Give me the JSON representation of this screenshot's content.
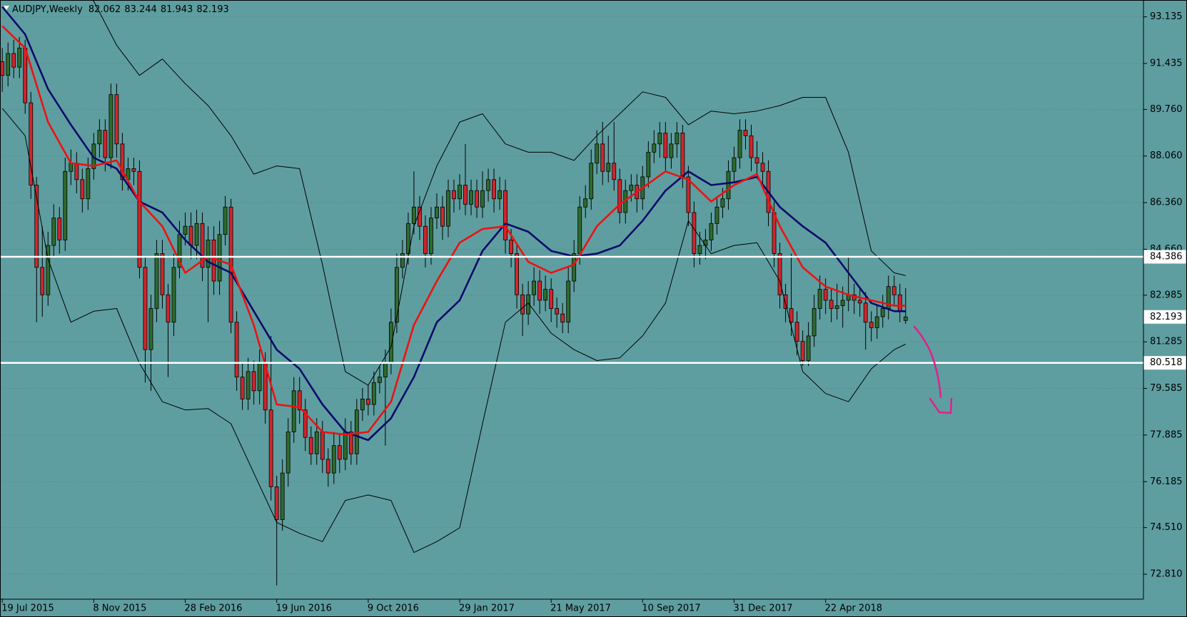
{
  "chart_data": {
    "type": "candlestick",
    "title": "AUDJPY,Weekly",
    "background": "#5f9ea0",
    "up_color": "#2e6b2e",
    "down_color": "#d0262b",
    "wick_color": "#000000",
    "hline_color": "#ffffff",
    "ylim": [
      71.9,
      93.75
    ],
    "yticks": [
      93.135,
      91.435,
      {
        "value": 89.76,
        "label": "89.760"
      },
      {
        "value": 88.06,
        "label": "88.060"
      },
      {
        "value": 86.36,
        "label": "86.360"
      },
      {
        "value": 84.66,
        "label": "84.660"
      },
      82.985,
      81.285,
      79.585,
      77.885,
      76.185,
      {
        "value": 74.51,
        "label": "74.510"
      },
      {
        "value": 72.81,
        "label": "72.810"
      }
    ],
    "grid": true,
    "hlines": [
      84.386,
      80.518
    ],
    "categories": [
      "19 Jul 2015",
      null,
      null,
      null,
      null,
      null,
      null,
      null,
      null,
      null,
      null,
      null,
      null,
      null,
      null,
      null,
      "8 Nov 2015",
      null,
      null,
      null,
      null,
      null,
      null,
      null,
      null,
      null,
      null,
      null,
      null,
      null,
      null,
      null,
      "28 Feb 2016",
      null,
      null,
      null,
      null,
      null,
      null,
      null,
      null,
      null,
      null,
      null,
      null,
      null,
      null,
      null,
      "19 Jun 2016",
      null,
      null,
      null,
      null,
      null,
      null,
      null,
      null,
      null,
      null,
      null,
      null,
      null,
      null,
      null,
      "9 Oct 2016",
      null,
      null,
      null,
      null,
      null,
      null,
      null,
      null,
      null,
      null,
      null,
      null,
      null,
      null,
      null,
      "29 Jan 2017",
      null,
      null,
      null,
      null,
      null,
      null,
      null,
      null,
      null,
      null,
      null,
      null,
      null,
      null,
      null,
      "21 May 2017",
      null,
      null,
      null,
      null,
      null,
      null,
      null,
      null,
      null,
      null,
      null,
      null,
      null,
      null,
      null,
      "10 Sep 2017",
      null,
      null,
      null,
      null,
      null,
      null,
      null,
      null,
      null,
      null,
      null,
      null,
      null,
      null,
      null,
      "31 Dec 2017",
      null,
      null,
      null,
      null,
      null,
      null,
      null,
      null,
      null,
      null,
      null,
      null,
      null,
      null,
      null,
      "22 Apr 2018",
      null,
      null,
      null,
      null,
      null,
      null,
      null,
      null,
      null,
      null,
      null,
      null,
      null,
      null
    ],
    "ohlc": [
      [
        91.5,
        92.0,
        90.4,
        91.0
      ],
      [
        91.0,
        92.2,
        90.6,
        91.8
      ],
      [
        91.8,
        92.3,
        90.9,
        91.3
      ],
      [
        91.3,
        92.4,
        90.9,
        92.0
      ],
      [
        92.0,
        92.3,
        89.6,
        90.0
      ],
      [
        90.0,
        90.4,
        86.5,
        87.0
      ],
      [
        87.0,
        87.3,
        82.0,
        84.0
      ],
      [
        84.0,
        85.5,
        82.2,
        83.0
      ],
      [
        83.0,
        85.3,
        82.6,
        84.8
      ],
      [
        84.8,
        86.3,
        84.4,
        85.8
      ],
      [
        85.8,
        86.2,
        84.5,
        85.0
      ],
      [
        85.0,
        88.0,
        84.6,
        87.5
      ],
      [
        87.5,
        88.3,
        87.0,
        87.8
      ],
      [
        87.8,
        88.2,
        86.7,
        87.2
      ],
      [
        87.2,
        87.6,
        86.0,
        86.5
      ],
      [
        86.5,
        88.0,
        86.1,
        87.6
      ],
      [
        87.6,
        88.9,
        87.2,
        88.5
      ],
      [
        88.5,
        89.4,
        88.0,
        89.0
      ],
      [
        89.0,
        89.4,
        87.5,
        88.0
      ],
      [
        88.0,
        90.7,
        87.6,
        90.3
      ],
      [
        90.3,
        90.7,
        88.0,
        88.5
      ],
      [
        88.5,
        88.9,
        86.8,
        87.2
      ],
      [
        87.2,
        88.0,
        86.8,
        87.6
      ],
      [
        87.6,
        88.0,
        87.0,
        87.5
      ],
      [
        87.5,
        87.9,
        83.6,
        84.0
      ],
      [
        84.0,
        84.4,
        79.8,
        81.0
      ],
      [
        81.0,
        83.0,
        79.5,
        82.5
      ],
      [
        82.5,
        85.0,
        82.0,
        84.5
      ],
      [
        84.5,
        85.0,
        82.5,
        83.0
      ],
      [
        83.0,
        83.4,
        80.0,
        82.0
      ],
      [
        82.0,
        84.5,
        81.5,
        84.0
      ],
      [
        84.0,
        85.7,
        83.6,
        85.2
      ],
      [
        85.2,
        86.0,
        84.8,
        85.5
      ],
      [
        85.5,
        86.0,
        84.3,
        84.8
      ],
      [
        84.8,
        86.1,
        84.3,
        85.6
      ],
      [
        85.6,
        86.0,
        83.5,
        84.0
      ],
      [
        84.0,
        85.5,
        82.0,
        85.0
      ],
      [
        85.0,
        85.5,
        83.0,
        83.5
      ],
      [
        83.5,
        85.7,
        83.0,
        85.2
      ],
      [
        85.2,
        86.6,
        84.8,
        86.2
      ],
      [
        86.2,
        86.5,
        81.6,
        82.0
      ],
      [
        82.0,
        82.4,
        79.5,
        80.0
      ],
      [
        80.0,
        80.5,
        78.8,
        79.2
      ],
      [
        79.2,
        80.7,
        78.8,
        80.2
      ],
      [
        80.2,
        80.6,
        79.0,
        79.5
      ],
      [
        79.5,
        81.0,
        79.0,
        80.5
      ],
      [
        80.5,
        80.9,
        78.3,
        78.8
      ],
      [
        78.8,
        81.5,
        75.5,
        76.0
      ],
      [
        76.0,
        76.4,
        72.4,
        74.8
      ],
      [
        74.8,
        77.0,
        74.4,
        76.5
      ],
      [
        76.5,
        78.5,
        76.0,
        78.0
      ],
      [
        78.0,
        80.0,
        77.6,
        79.5
      ],
      [
        79.5,
        80.0,
        78.3,
        78.8
      ],
      [
        78.8,
        79.2,
        77.3,
        77.8
      ],
      [
        77.8,
        78.2,
        76.8,
        77.2
      ],
      [
        77.2,
        78.5,
        76.8,
        78.0
      ],
      [
        78.0,
        78.4,
        76.5,
        77.0
      ],
      [
        77.0,
        77.4,
        76.0,
        76.5
      ],
      [
        76.5,
        78.0,
        76.1,
        77.5
      ],
      [
        77.5,
        77.9,
        76.5,
        77.0
      ],
      [
        77.0,
        78.5,
        76.6,
        78.0
      ],
      [
        78.0,
        78.4,
        76.8,
        77.2
      ],
      [
        77.2,
        79.2,
        76.8,
        78.8
      ],
      [
        78.8,
        79.6,
        78.4,
        79.2
      ],
      [
        79.2,
        79.7,
        78.6,
        79.0
      ],
      [
        79.0,
        80.2,
        78.6,
        79.8
      ],
      [
        79.8,
        80.4,
        79.4,
        80.0
      ],
      [
        80.0,
        81.0,
        77.5,
        80.5
      ],
      [
        80.5,
        82.5,
        80.1,
        82.0
      ],
      [
        82.0,
        84.5,
        81.6,
        84.0
      ],
      [
        84.0,
        85.0,
        83.6,
        84.5
      ],
      [
        84.5,
        86.0,
        84.1,
        85.6
      ],
      [
        85.6,
        87.5,
        85.2,
        86.2
      ],
      [
        86.2,
        86.6,
        85.0,
        85.5
      ],
      [
        85.5,
        85.9,
        84.0,
        84.5
      ],
      [
        84.5,
        86.2,
        84.1,
        85.8
      ],
      [
        85.8,
        86.7,
        85.4,
        86.2
      ],
      [
        86.2,
        86.6,
        85.0,
        85.5
      ],
      [
        85.5,
        87.2,
        85.1,
        86.8
      ],
      [
        86.8,
        87.2,
        86.0,
        86.5
      ],
      [
        86.5,
        87.4,
        86.1,
        87.0
      ],
      [
        87.0,
        88.5,
        85.9,
        86.3
      ],
      [
        86.3,
        87.2,
        85.9,
        86.8
      ],
      [
        86.8,
        87.2,
        85.8,
        86.2
      ],
      [
        86.2,
        87.5,
        85.8,
        86.8
      ],
      [
        86.8,
        87.6,
        86.4,
        87.2
      ],
      [
        87.2,
        87.6,
        86.0,
        86.5
      ],
      [
        86.5,
        87.3,
        86.1,
        86.8
      ],
      [
        86.8,
        87.2,
        84.5,
        85.0
      ],
      [
        85.0,
        85.4,
        84.0,
        84.5
      ],
      [
        84.5,
        84.9,
        82.5,
        83.0
      ],
      [
        83.0,
        83.4,
        81.5,
        82.3
      ],
      [
        82.3,
        83.5,
        81.9,
        83.0
      ],
      [
        83.0,
        84.0,
        82.6,
        83.5
      ],
      [
        83.5,
        83.9,
        82.3,
        82.8
      ],
      [
        82.8,
        83.7,
        82.4,
        83.2
      ],
      [
        83.2,
        83.6,
        82.0,
        82.5
      ],
      [
        82.5,
        82.9,
        81.8,
        82.3
      ],
      [
        82.3,
        82.7,
        81.6,
        82.0
      ],
      [
        82.0,
        84.0,
        81.6,
        83.5
      ],
      [
        83.5,
        85.0,
        83.1,
        84.5
      ],
      [
        84.5,
        86.6,
        84.1,
        86.2
      ],
      [
        86.2,
        87.0,
        85.8,
        86.5
      ],
      [
        86.5,
        88.3,
        86.1,
        87.8
      ],
      [
        87.8,
        89.0,
        87.4,
        88.5
      ],
      [
        88.5,
        89.3,
        87.0,
        87.5
      ],
      [
        87.5,
        88.8,
        87.1,
        87.8
      ],
      [
        87.8,
        89.3,
        86.8,
        87.2
      ],
      [
        87.2,
        87.6,
        85.6,
        86.0
      ],
      [
        86.0,
        87.2,
        85.6,
        86.8
      ],
      [
        86.8,
        87.4,
        86.4,
        87.0
      ],
      [
        87.0,
        87.4,
        86.0,
        86.5
      ],
      [
        86.5,
        87.7,
        86.1,
        87.3
      ],
      [
        87.3,
        88.6,
        86.9,
        88.2
      ],
      [
        88.2,
        89.0,
        87.8,
        88.5
      ],
      [
        88.5,
        89.3,
        88.0,
        88.9
      ],
      [
        88.9,
        89.3,
        87.5,
        88.0
      ],
      [
        88.0,
        88.9,
        87.6,
        88.5
      ],
      [
        88.5,
        89.3,
        88.0,
        88.9
      ],
      [
        88.9,
        89.2,
        86.9,
        87.3
      ],
      [
        87.3,
        87.7,
        85.5,
        86.0
      ],
      [
        86.0,
        86.4,
        84.0,
        84.5
      ],
      [
        84.5,
        85.3,
        84.1,
        84.8
      ],
      [
        84.8,
        85.4,
        84.3,
        85.0
      ],
      [
        85.0,
        86.0,
        84.6,
        85.6
      ],
      [
        85.6,
        86.6,
        85.2,
        86.2
      ],
      [
        86.2,
        86.9,
        85.8,
        86.5
      ],
      [
        86.5,
        87.9,
        86.1,
        87.5
      ],
      [
        87.5,
        88.4,
        87.1,
        88.0
      ],
      [
        88.0,
        89.4,
        87.6,
        89.0
      ],
      [
        89.0,
        89.4,
        88.3,
        88.8
      ],
      [
        88.8,
        89.2,
        87.5,
        88.0
      ],
      [
        88.0,
        88.6,
        87.3,
        87.8
      ],
      [
        87.8,
        88.2,
        87.0,
        87.5
      ],
      [
        87.5,
        87.9,
        85.5,
        86.0
      ],
      [
        86.0,
        86.4,
        84.0,
        84.5
      ],
      [
        84.5,
        84.9,
        82.5,
        83.0
      ],
      [
        83.0,
        83.4,
        82.0,
        82.5
      ],
      [
        82.5,
        84.5,
        81.5,
        82.0
      ],
      [
        82.0,
        82.4,
        80.8,
        81.3
      ],
      [
        81.3,
        81.7,
        80.4,
        80.6
      ],
      [
        80.6,
        82.0,
        80.4,
        81.5
      ],
      [
        81.5,
        83.0,
        81.1,
        82.5
      ],
      [
        82.5,
        83.7,
        82.1,
        83.2
      ],
      [
        83.2,
        83.6,
        82.3,
        82.8
      ],
      [
        82.8,
        83.2,
        82.0,
        82.5
      ],
      [
        82.5,
        83.4,
        82.1,
        82.6
      ],
      [
        82.6,
        83.3,
        81.8,
        82.8
      ],
      [
        82.8,
        84.4,
        82.4,
        83.0
      ],
      [
        83.0,
        83.4,
        82.3,
        82.8
      ],
      [
        82.8,
        83.2,
        82.2,
        82.7
      ],
      [
        82.7,
        83.1,
        81.0,
        82.0
      ],
      [
        82.0,
        82.4,
        81.3,
        81.8
      ],
      [
        81.8,
        82.6,
        81.4,
        82.2
      ],
      [
        82.2,
        83.0,
        81.8,
        82.5
      ],
      [
        82.5,
        83.7,
        82.1,
        83.3
      ],
      [
        83.3,
        83.7,
        82.6,
        83.0
      ],
      [
        83.0,
        83.4,
        82.0,
        82.4
      ],
      [
        82.062,
        83.244,
        81.943,
        82.193
      ]
    ],
    "line_x": [
      0,
      4,
      8,
      12,
      16,
      20,
      24,
      28,
      32,
      36,
      40,
      44,
      48,
      52,
      56,
      60,
      64,
      68,
      72,
      76,
      80,
      84,
      88,
      92,
      96,
      100,
      104,
      108,
      112,
      116,
      120,
      124,
      128,
      132,
      136,
      140,
      144,
      148,
      152,
      156,
      158
    ],
    "overlays": [
      {
        "kind": "band",
        "color": "#000000",
        "values": [
          95.5,
          95.3,
          95.0,
          94.5,
          93.7,
          92.1,
          91.0,
          91.6,
          90.7,
          89.9,
          88.8,
          87.4,
          87.7,
          87.6,
          84.1,
          80.2,
          79.7,
          81.1,
          85.5,
          87.7,
          89.3,
          89.6,
          88.5,
          88.2,
          88.2,
          87.9,
          88.8,
          89.6,
          90.4,
          90.2,
          89.2,
          89.7,
          89.6,
          89.7,
          89.9,
          90.2,
          90.2,
          88.2,
          84.6,
          83.8,
          83.7
        ]
      },
      {
        "kind": "band",
        "color": "#000000",
        "values": [
          89.8,
          88.8,
          84.3,
          82.0,
          82.4,
          82.5,
          80.5,
          79.1,
          78.8,
          78.85,
          78.3,
          76.5,
          74.7,
          74.3,
          74.0,
          75.5,
          75.7,
          75.5,
          73.6,
          74.0,
          74.5,
          78.3,
          82.0,
          82.7,
          81.6,
          81.0,
          80.6,
          80.7,
          81.5,
          82.7,
          85.7,
          84.5,
          84.8,
          84.9,
          83.5,
          80.2,
          79.4,
          79.1,
          80.3,
          81.0,
          81.2
        ]
      },
      {
        "kind": "ma",
        "color": "#0b0b6b",
        "values": [
          93.5,
          92.5,
          90.5,
          89.2,
          88.0,
          87.6,
          86.4,
          86.0,
          85.0,
          84.2,
          83.8,
          82.4,
          81.0,
          80.3,
          79.0,
          78.0,
          77.7,
          78.5,
          80.0,
          82.0,
          82.8,
          84.6,
          85.6,
          85.3,
          84.6,
          84.4,
          84.5,
          84.8,
          85.7,
          86.8,
          87.5,
          87.0,
          87.1,
          87.3,
          86.2,
          85.5,
          84.9,
          83.8,
          82.7,
          82.4,
          82.4
        ]
      },
      {
        "kind": "ma",
        "color": "#ee1111",
        "values": [
          92.8,
          92.0,
          89.3,
          87.8,
          87.7,
          87.9,
          86.4,
          85.5,
          83.8,
          84.4,
          84.1,
          81.9,
          79.0,
          78.9,
          78.0,
          77.9,
          78.0,
          79.1,
          81.9,
          83.5,
          84.9,
          85.4,
          85.5,
          84.2,
          83.8,
          84.1,
          85.5,
          86.3,
          86.9,
          87.5,
          87.2,
          86.4,
          87.0,
          87.4,
          85.5,
          84.0,
          83.3,
          83.0,
          82.8,
          82.6,
          82.6
        ]
      }
    ]
  }
}
